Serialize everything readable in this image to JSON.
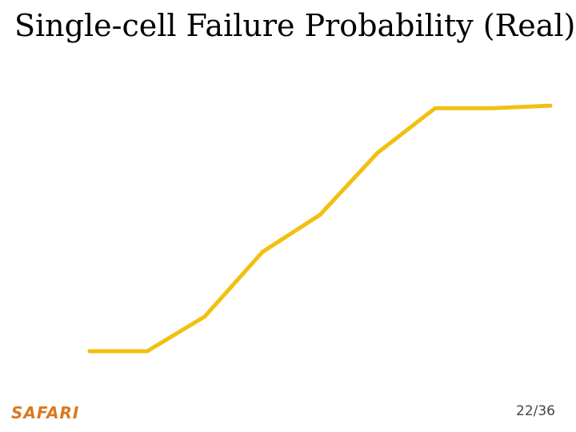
{
  "slide": {
    "title": "Single-cell Failure Probability (Real)",
    "logo_text": "SAFARI",
    "page_number": "22/36"
  },
  "colors": {
    "series_line": "#f1c010",
    "logo": "#d9791f"
  },
  "chart_data": {
    "type": "line",
    "title": "",
    "xlabel": "",
    "ylabel": "",
    "grid": false,
    "legend": "none",
    "x": [
      1,
      2,
      3,
      4,
      5,
      6,
      7,
      8,
      9
    ],
    "ylim": [
      0,
      100
    ],
    "series": [
      {
        "values": [
          0,
          0,
          14,
          40,
          55,
          80,
          98,
          98,
          99
        ]
      }
    ]
  }
}
